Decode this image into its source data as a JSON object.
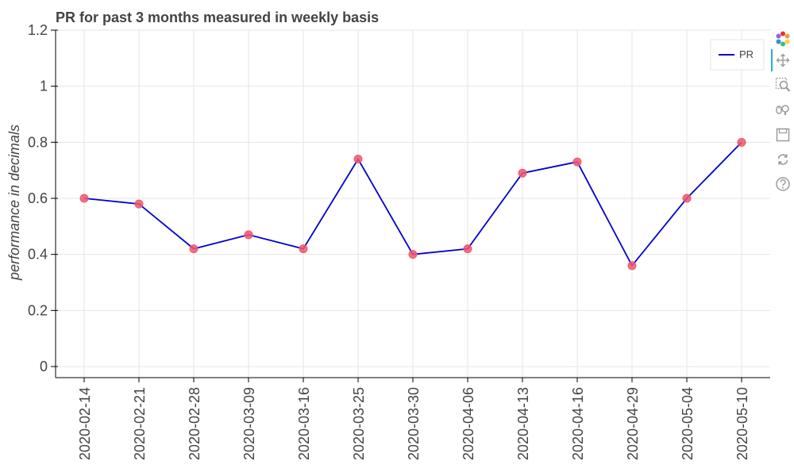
{
  "chart_data": {
    "type": "line",
    "title": "PR for past 3 months measured in weekly basis",
    "xlabel": "",
    "ylabel": "performance in decimals",
    "categories": [
      "2020-02-14",
      "2020-02-21",
      "2020-02-28",
      "2020-03-09",
      "2020-03-16",
      "2020-03-25",
      "2020-03-30",
      "2020-04-06",
      "2020-04-13",
      "2020-04-16",
      "2020-04-29",
      "2020-05-04",
      "2020-05-10"
    ],
    "series": [
      {
        "name": "PR",
        "values": [
          0.6,
          0.58,
          0.42,
          0.47,
          0.42,
          0.74,
          0.4,
          0.42,
          0.69,
          0.73,
          0.36,
          0.6,
          0.8
        ]
      }
    ],
    "ylim": [
      0,
      1.2
    ],
    "yticks": [
      0,
      0.2,
      0.4,
      0.6,
      0.8,
      1,
      1.2
    ],
    "ytick_labels": [
      "0",
      "0.2",
      "0.4",
      "0.6",
      "0.8",
      "1",
      "1.2"
    ],
    "grid": true,
    "legend_position": "top-right",
    "colors": {
      "line": "#0000cc",
      "marker": "#f0566e",
      "grid": "#e5e5e5"
    }
  },
  "toolbar": {
    "tools": [
      {
        "name": "bokeh-logo-icon",
        "interactable": true
      },
      {
        "name": "pan-icon",
        "interactable": true,
        "active": true
      },
      {
        "name": "box-zoom-icon",
        "interactable": true
      },
      {
        "name": "wheel-zoom-icon",
        "interactable": true
      },
      {
        "name": "save-icon",
        "interactable": true
      },
      {
        "name": "reset-icon",
        "interactable": true
      },
      {
        "name": "help-icon",
        "interactable": true
      }
    ]
  }
}
